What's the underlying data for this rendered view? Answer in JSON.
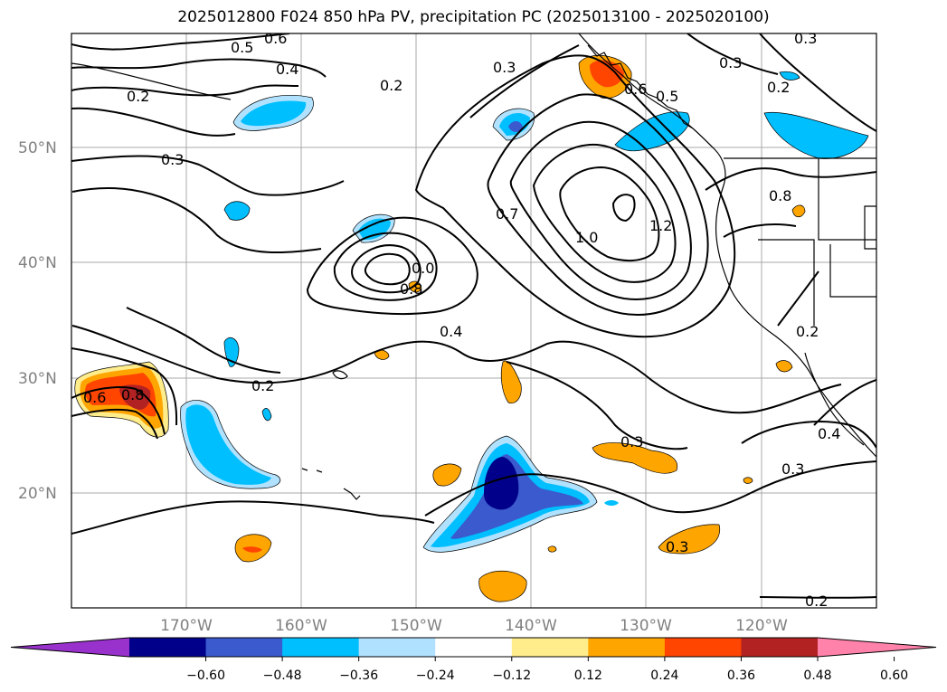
{
  "title": "2025012800 F024 850 hPa PV, precipitation PC (2025013100 - 2025020100)",
  "map": {
    "lat_labels": [
      "50°N",
      "40°N",
      "30°N",
      "20°N"
    ],
    "lon_labels": [
      "170°W",
      "160°W",
      "150°W",
      "140°W",
      "130°W",
      "120°W"
    ],
    "extent": {
      "lon": [
        -180,
        -110
      ],
      "lat": [
        10,
        60
      ]
    },
    "grid": true,
    "contour_labels": [
      "0.5",
      "0.6",
      "0.4",
      "0.2",
      "0.3",
      "0.2",
      "0.3",
      "0.3",
      "0.5",
      "0.6",
      "0.7",
      "1.0",
      "1.2",
      "0.8",
      "0.2",
      "0.3",
      "0.0",
      "0.8",
      "0.4",
      "0.2",
      "0.6",
      "0.8",
      "0.3",
      "0.3",
      "0.4",
      "0.2",
      "0.3",
      "0.2"
    ]
  },
  "colorbar": {
    "ticks": [
      "−0.60",
      "−0.48",
      "−0.36",
      "−0.24",
      "−0.12",
      "0.12",
      "0.24",
      "0.36",
      "0.48",
      "0.60"
    ],
    "colors": [
      "#9932cc",
      "#00008b",
      "#3a5acd",
      "#00bfff",
      "#b0e2ff",
      "#ffffff",
      "#ffec8b",
      "#ffa500",
      "#ff4500",
      "#b22222",
      "#ff82ab"
    ]
  }
}
